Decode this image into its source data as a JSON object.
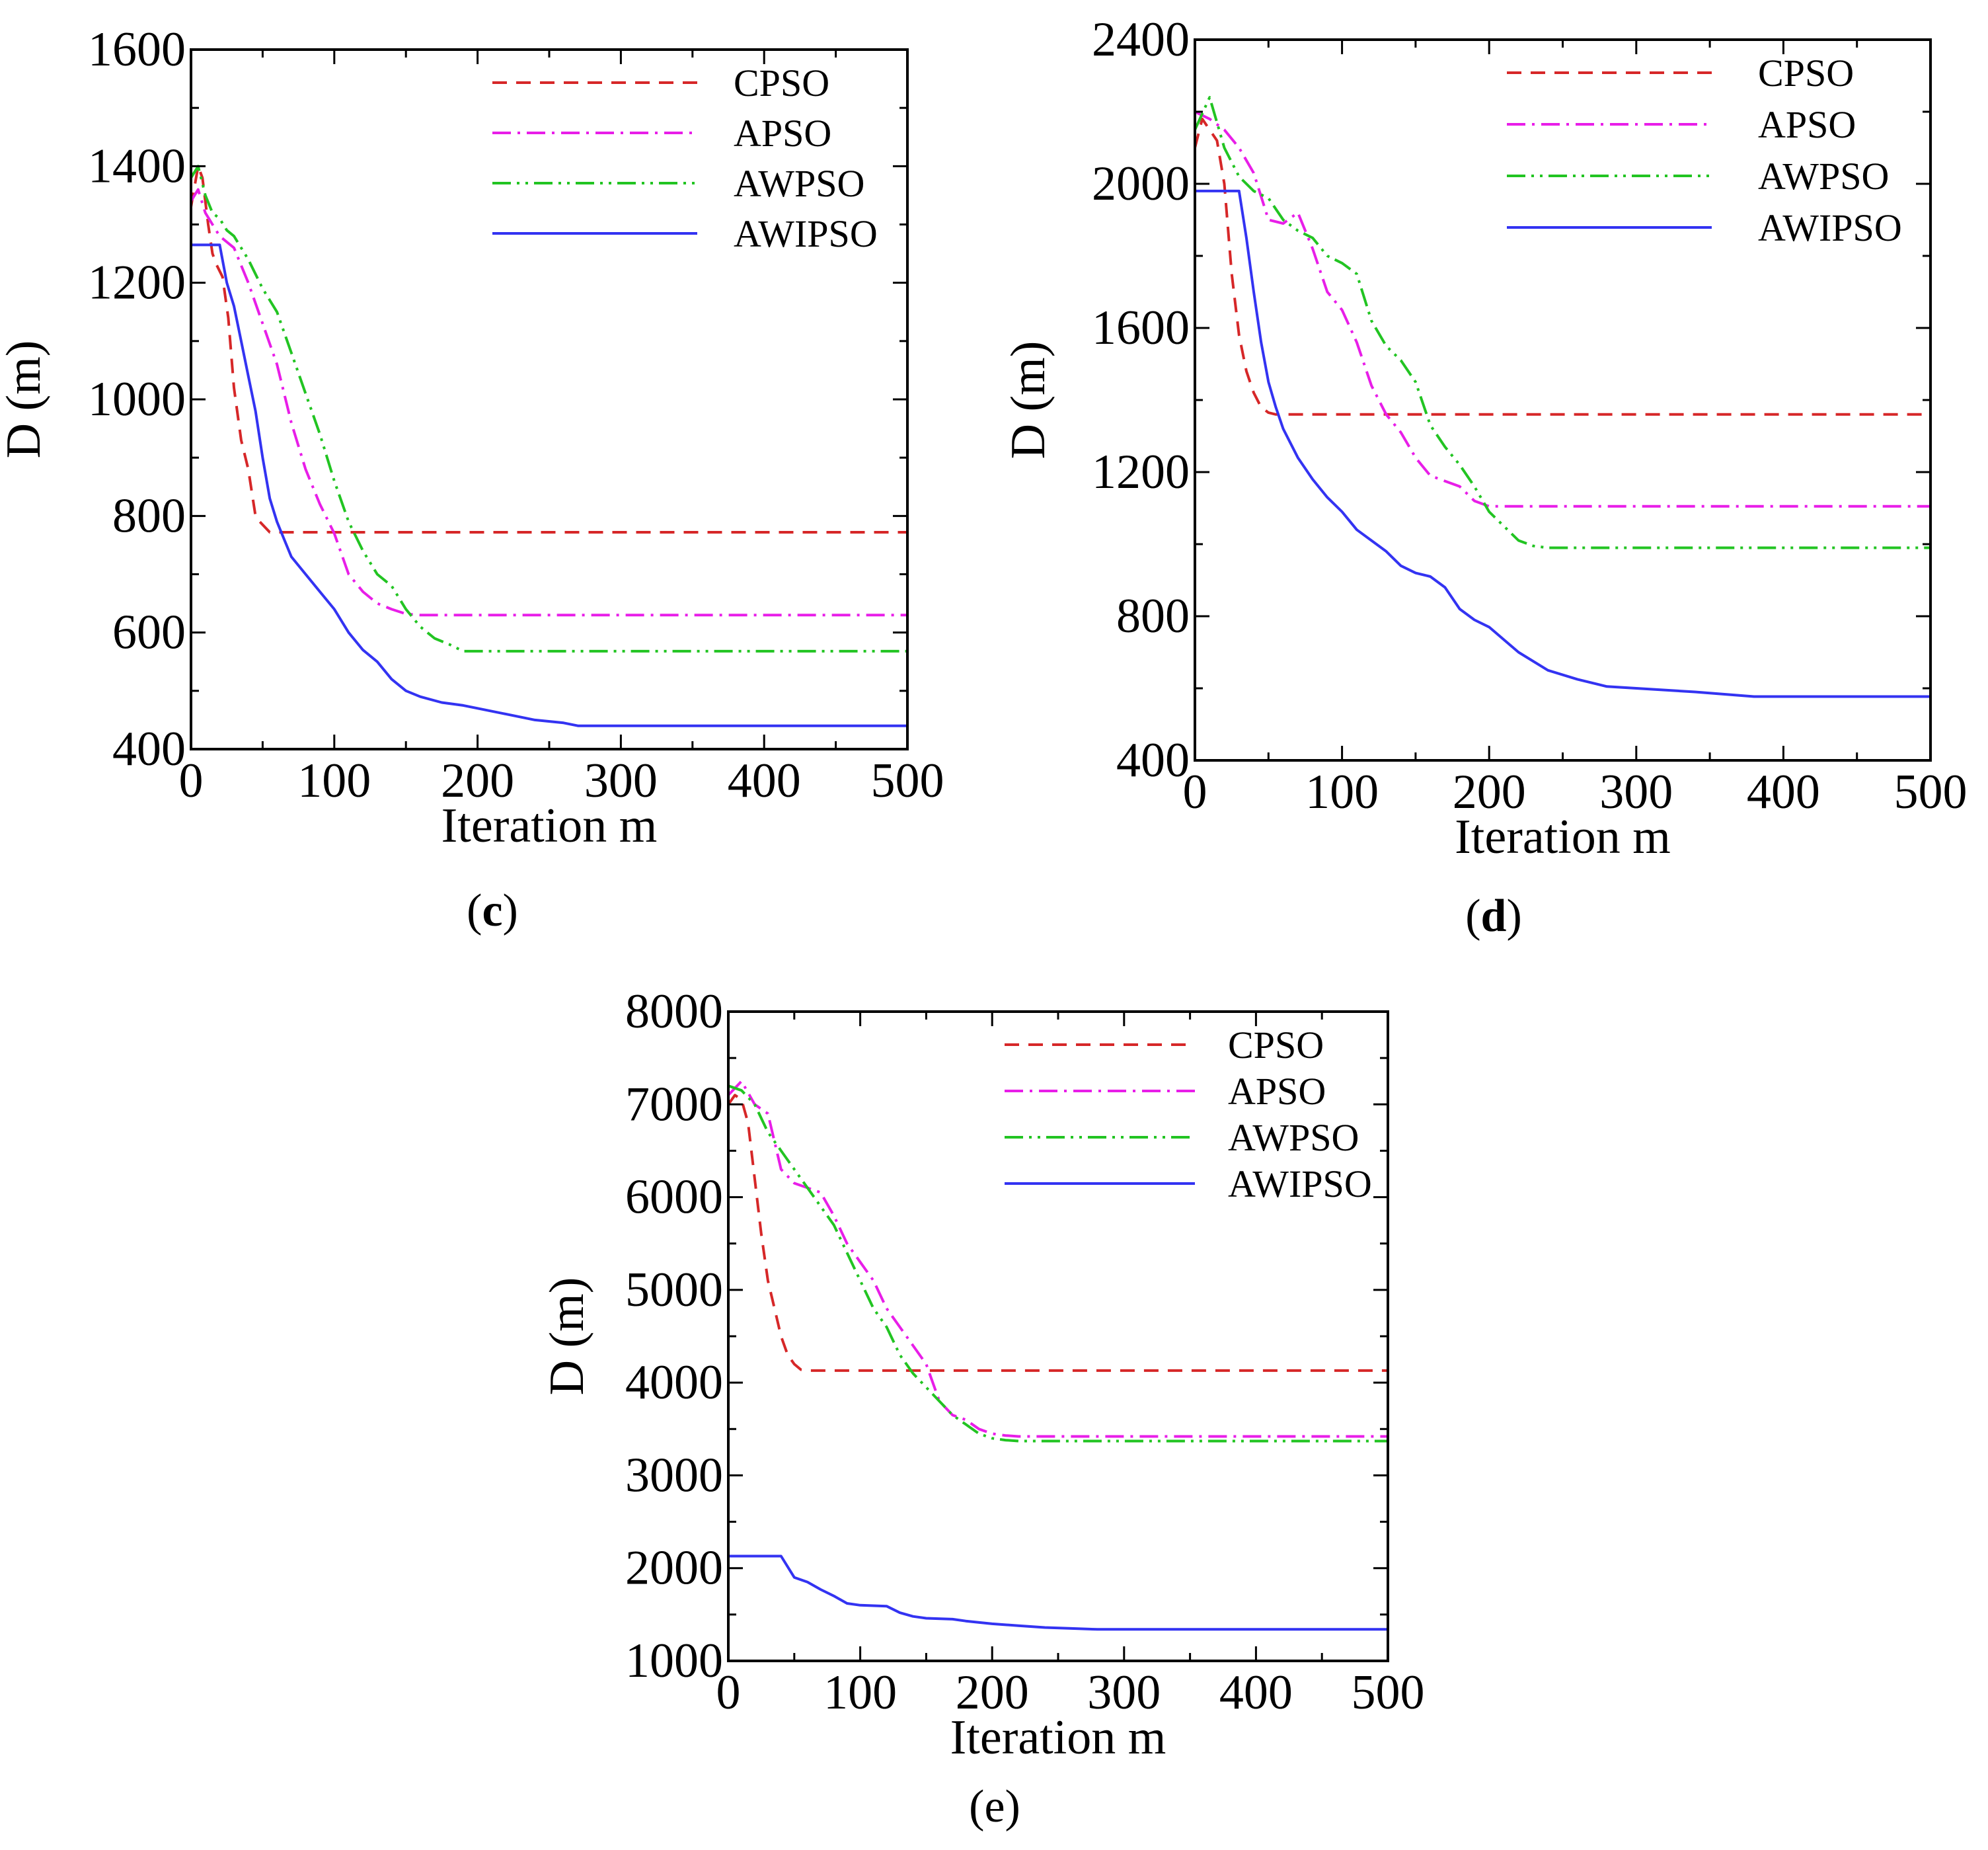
{
  "chart_data": [
    {
      "type": "line",
      "caption_letter": "c",
      "xlabel": "Iteration m",
      "ylabel": "D (m)",
      "xlim": [
        0,
        500
      ],
      "ylim": [
        400,
        1600
      ],
      "xticks": [
        0,
        100,
        200,
        300,
        400,
        500
      ],
      "yticks": [
        400,
        600,
        800,
        1000,
        1200,
        1400,
        1600
      ],
      "xtick_labels": [
        "0",
        "100",
        "200",
        "300",
        "400",
        "500"
      ],
      "ytick_labels": [
        "400",
        "600",
        "800",
        "1000",
        "1200",
        "1400",
        "1600"
      ],
      "legend_position": "top-right",
      "series": [
        {
          "name": "CPSO",
          "color": "#d62728",
          "dash": "dashed",
          "x": [
            0,
            5,
            8,
            12,
            15,
            18,
            22,
            26,
            30,
            35,
            40,
            45,
            48,
            50,
            55,
            60,
            500
          ],
          "y": [
            1330,
            1400,
            1380,
            1300,
            1250,
            1230,
            1210,
            1140,
            1020,
            930,
            880,
            800,
            790,
            785,
            772,
            772,
            772
          ]
        },
        {
          "name": "APSO",
          "color": "#e81ee8",
          "dash": "dashdot",
          "x": [
            0,
            5,
            10,
            15,
            20,
            25,
            30,
            40,
            50,
            60,
            70,
            80,
            90,
            100,
            110,
            120,
            130,
            140,
            150,
            160,
            500
          ],
          "y": [
            1340,
            1360,
            1320,
            1300,
            1280,
            1270,
            1260,
            1200,
            1130,
            1060,
            960,
            880,
            820,
            770,
            700,
            670,
            650,
            640,
            632,
            630,
            630
          ]
        },
        {
          "name": "AWPSO",
          "color": "#22c422",
          "dash": "dashdotdot",
          "x": [
            0,
            5,
            10,
            15,
            20,
            25,
            30,
            40,
            50,
            60,
            70,
            80,
            90,
            100,
            110,
            120,
            130,
            140,
            150,
            160,
            170,
            180,
            190,
            500
          ],
          "y": [
            1380,
            1400,
            1350,
            1320,
            1310,
            1290,
            1280,
            1240,
            1190,
            1150,
            1080,
            1010,
            940,
            860,
            790,
            740,
            700,
            680,
            640,
            610,
            590,
            580,
            568,
            568
          ]
        },
        {
          "name": "AWIPSO",
          "color": "#3333f2",
          "dash": "solid",
          "x": [
            0,
            20,
            25,
            30,
            35,
            40,
            45,
            50,
            55,
            60,
            65,
            70,
            80,
            90,
            100,
            110,
            120,
            130,
            140,
            150,
            160,
            175,
            190,
            200,
            220,
            240,
            260,
            270,
            500
          ],
          "y": [
            1265,
            1265,
            1200,
            1160,
            1100,
            1040,
            980,
            900,
            830,
            790,
            760,
            730,
            700,
            670,
            640,
            600,
            570,
            550,
            520,
            500,
            490,
            480,
            475,
            470,
            460,
            450,
            445,
            440,
            440
          ]
        }
      ]
    },
    {
      "type": "line",
      "caption_letter": "d",
      "xlabel": "Iteration m",
      "ylabel": "D (m)",
      "xlim": [
        0,
        500
      ],
      "ylim": [
        400,
        2400
      ],
      "xticks": [
        0,
        100,
        200,
        300,
        400,
        500
      ],
      "yticks": [
        400,
        800,
        1200,
        1600,
        2000,
        2400
      ],
      "xtick_labels": [
        "0",
        "100",
        "200",
        "300",
        "400",
        "500"
      ],
      "ytick_labels": [
        "400",
        "800",
        "1200",
        "1600",
        "2000",
        "2400"
      ],
      "legend_position": "top-right",
      "series": [
        {
          "name": "CPSO",
          "color": "#d62728",
          "dash": "dashed",
          "x": [
            0,
            5,
            10,
            15,
            20,
            25,
            30,
            35,
            40,
            45,
            50,
            55,
            500
          ],
          "y": [
            2100,
            2180,
            2150,
            2120,
            2000,
            1750,
            1580,
            1480,
            1420,
            1380,
            1365,
            1360,
            1360
          ]
        },
        {
          "name": "APSO",
          "color": "#e81ee8",
          "dash": "dashdot",
          "x": [
            0,
            10,
            20,
            30,
            40,
            50,
            60,
            70,
            80,
            90,
            100,
            110,
            120,
            130,
            140,
            150,
            160,
            170,
            180,
            190,
            200,
            500
          ],
          "y": [
            2200,
            2180,
            2150,
            2100,
            2030,
            1900,
            1890,
            1920,
            1820,
            1700,
            1650,
            1560,
            1440,
            1360,
            1310,
            1240,
            1190,
            1175,
            1160,
            1120,
            1105,
            1105
          ]
        },
        {
          "name": "AWPSO",
          "color": "#22c422",
          "dash": "dashdotdot",
          "x": [
            0,
            10,
            20,
            30,
            40,
            50,
            60,
            70,
            80,
            90,
            100,
            110,
            120,
            130,
            140,
            150,
            160,
            170,
            180,
            190,
            200,
            210,
            220,
            230,
            240,
            500
          ],
          "y": [
            2150,
            2240,
            2100,
            2020,
            1980,
            1960,
            1900,
            1870,
            1850,
            1800,
            1780,
            1750,
            1620,
            1550,
            1510,
            1450,
            1330,
            1270,
            1220,
            1160,
            1090,
            1050,
            1010,
            995,
            990,
            990
          ]
        },
        {
          "name": "AWIPSO",
          "color": "#3333f2",
          "dash": "solid",
          "x": [
            0,
            30,
            35,
            40,
            45,
            50,
            55,
            60,
            70,
            80,
            90,
            100,
            110,
            120,
            130,
            140,
            150,
            160,
            170,
            180,
            190,
            200,
            220,
            240,
            260,
            280,
            300,
            340,
            380,
            500
          ],
          "y": [
            1980,
            1980,
            1850,
            1700,
            1560,
            1450,
            1380,
            1320,
            1240,
            1180,
            1130,
            1090,
            1040,
            1010,
            980,
            940,
            920,
            910,
            880,
            820,
            790,
            770,
            700,
            650,
            625,
            605,
            600,
            590,
            577,
            577
          ]
        }
      ]
    },
    {
      "type": "line",
      "caption_letter": "e",
      "xlabel": "Iteration m",
      "ylabel": "D (m)",
      "xlim": [
        0,
        500
      ],
      "ylim": [
        1000,
        8000
      ],
      "xticks": [
        0,
        100,
        200,
        300,
        400,
        500
      ],
      "yticks": [
        1000,
        2000,
        3000,
        4000,
        5000,
        6000,
        7000,
        8000
      ],
      "xtick_labels": [
        "0",
        "100",
        "200",
        "300",
        "400",
        "500"
      ],
      "ytick_labels": [
        "1000",
        "2000",
        "3000",
        "4000",
        "5000",
        "6000",
        "7000",
        "8000"
      ],
      "legend_position": "top-right",
      "series": [
        {
          "name": "CPSO",
          "color": "#d62728",
          "dash": "dashed",
          "x": [
            0,
            5,
            10,
            15,
            20,
            25,
            30,
            35,
            40,
            45,
            50,
            55,
            60,
            500
          ],
          "y": [
            7000,
            7100,
            7050,
            6800,
            6200,
            5600,
            5100,
            4800,
            4500,
            4300,
            4200,
            4140,
            4130,
            4130
          ]
        },
        {
          "name": "APSO",
          "color": "#e81ee8",
          "dash": "dashdot",
          "x": [
            0,
            10,
            20,
            30,
            40,
            50,
            60,
            70,
            80,
            90,
            100,
            110,
            120,
            130,
            140,
            150,
            160,
            170,
            180,
            190,
            200,
            210,
            220,
            500
          ],
          "y": [
            7100,
            7250,
            7000,
            6900,
            6300,
            6150,
            6100,
            6050,
            5800,
            5500,
            5300,
            5100,
            4800,
            4600,
            4400,
            4200,
            3800,
            3650,
            3600,
            3500,
            3450,
            3430,
            3420,
            3420
          ]
        },
        {
          "name": "AWPSO",
          "color": "#22c422",
          "dash": "dashdotdot",
          "x": [
            0,
            10,
            20,
            30,
            40,
            50,
            60,
            70,
            80,
            90,
            100,
            110,
            120,
            130,
            140,
            150,
            160,
            170,
            180,
            190,
            200,
            210,
            220,
            500
          ],
          "y": [
            7200,
            7150,
            7000,
            6700,
            6500,
            6300,
            6100,
            5900,
            5700,
            5400,
            5100,
            4800,
            4600,
            4300,
            4100,
            3950,
            3800,
            3650,
            3550,
            3450,
            3400,
            3380,
            3370,
            3370
          ]
        },
        {
          "name": "AWIPSO",
          "color": "#3333f2",
          "dash": "solid",
          "x": [
            0,
            40,
            50,
            60,
            70,
            80,
            90,
            100,
            120,
            130,
            140,
            150,
            170,
            180,
            200,
            220,
            240,
            260,
            280,
            300,
            500
          ],
          "y": [
            2130,
            2130,
            1900,
            1850,
            1770,
            1700,
            1620,
            1600,
            1590,
            1520,
            1480,
            1460,
            1450,
            1430,
            1400,
            1380,
            1360,
            1350,
            1340,
            1340,
            1340
          ]
        }
      ]
    }
  ]
}
